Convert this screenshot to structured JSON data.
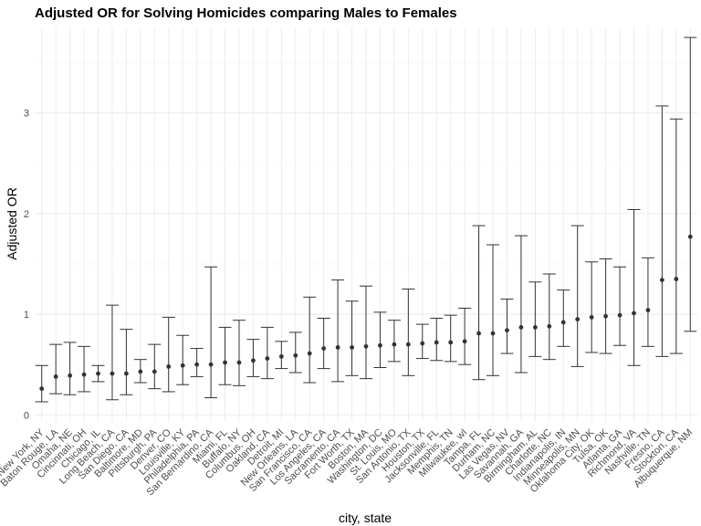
{
  "chart_data": {
    "type": "scatter",
    "title": "Adjusted OR for Solving Homicides comparing Males to Females",
    "xlabel": "city, state",
    "ylabel": "Adjusted OR",
    "ylim": [
      -0.07,
      3.85
    ],
    "yticks": [
      0,
      1,
      2,
      3
    ],
    "grid": true,
    "legend": "none",
    "colors": {
      "marks": "#333333",
      "grid_major": "#ebebeb",
      "grid_minor": "#f4f4f4",
      "text": "#4d4d4d"
    },
    "categories": [
      "New York, NY",
      "Baton Rouge, LA",
      "Omaha, NE",
      "Cincinnati, OH",
      "Chicago, IL",
      "Long Beach, CA",
      "San Diego, CA",
      "Baltimore, MD",
      "Pittsburgh, PA",
      "Denver, CO",
      "Louisville, KY",
      "Philadelphia, PA",
      "San Bernardino, CA",
      "Miami, FL",
      "Buffalo, NY",
      "Columbus, OH",
      "Oakland, CA",
      "Detroit, MI",
      "New Orleans, LA",
      "San Francisco, CA",
      "Los Angeles, CA",
      "Sacramento, CA",
      "Fort Worth, TX",
      "Boston, MA",
      "Washington, DC",
      "St. Louis, MO",
      "San Antonio, TX",
      "Houston, TX",
      "Jacksonville, FL",
      "Memphis, TN",
      "Milwaukee, wI",
      "Tampa, FL",
      "Durham, NC",
      "Las Vegas, NV",
      "Savannah, GA",
      "Birmingham, AL",
      "Charlotte, NC",
      "Indianapolis, IN",
      "Minneapolis, MN",
      "Oklahoma City, OK",
      "Tulsa, OK",
      "Atlanta, GA",
      "Richmond, VA",
      "Nashville, TN",
      "Fresno, CA",
      "Stockton, CA",
      "Albuquerque, NM"
    ],
    "series": [
      {
        "values": [
          0.26,
          0.38,
          0.39,
          0.4,
          0.41,
          0.41,
          0.41,
          0.43,
          0.43,
          0.48,
          0.49,
          0.5,
          0.5,
          0.52,
          0.52,
          0.54,
          0.56,
          0.58,
          0.59,
          0.61,
          0.66,
          0.67,
          0.67,
          0.68,
          0.69,
          0.7,
          0.7,
          0.71,
          0.72,
          0.72,
          0.73,
          0.81,
          0.81,
          0.84,
          0.87,
          0.87,
          0.88,
          0.92,
          0.95,
          0.97,
          0.98,
          0.99,
          1.01,
          1.04,
          1.34,
          1.35,
          1.77
        ],
        "lower": [
          0.13,
          0.21,
          0.2,
          0.23,
          0.33,
          0.15,
          0.2,
          0.32,
          0.26,
          0.23,
          0.3,
          0.38,
          0.17,
          0.3,
          0.29,
          0.38,
          0.36,
          0.46,
          0.42,
          0.32,
          0.46,
          0.33,
          0.39,
          0.36,
          0.47,
          0.53,
          0.39,
          0.56,
          0.54,
          0.53,
          0.5,
          0.35,
          0.39,
          0.61,
          0.42,
          0.58,
          0.55,
          0.68,
          0.48,
          0.62,
          0.61,
          0.69,
          0.49,
          0.68,
          0.58,
          0.61,
          0.83
        ],
        "upper": [
          0.49,
          0.7,
          0.72,
          0.68,
          0.49,
          1.09,
          0.85,
          0.55,
          0.7,
          0.97,
          0.79,
          0.66,
          1.47,
          0.87,
          0.94,
          0.75,
          0.87,
          0.73,
          0.82,
          1.17,
          0.96,
          1.34,
          1.13,
          1.28,
          1.02,
          0.94,
          1.25,
          0.9,
          0.96,
          0.99,
          1.06,
          1.88,
          1.69,
          1.15,
          1.78,
          1.32,
          1.4,
          1.24,
          1.88,
          1.52,
          1.55,
          1.47,
          2.04,
          1.56,
          3.07,
          2.94,
          3.75
        ]
      }
    ]
  }
}
